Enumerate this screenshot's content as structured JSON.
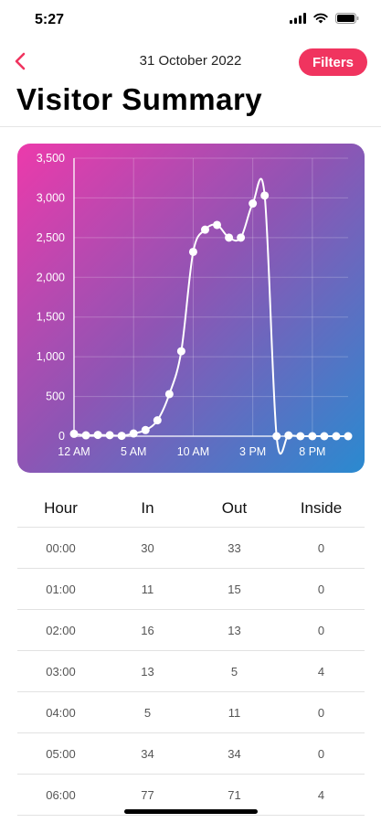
{
  "status": {
    "time": "5:27"
  },
  "nav": {
    "date": "31 October 2022",
    "filters_label": "Filters"
  },
  "title": "Visitor Summary",
  "colors": {
    "accent": "#f0345f"
  },
  "icons": {
    "back": "chevron-left-icon",
    "signal": "signal-icon",
    "wifi": "wifi-icon",
    "battery": "battery-icon"
  },
  "chart_data": {
    "type": "line",
    "x_tick_labels": [
      "12 AM",
      "5 AM",
      "10 AM",
      "3 PM",
      "8 PM"
    ],
    "x_tick_hours": [
      0,
      5,
      10,
      15,
      20
    ],
    "y_tick_labels": [
      "0",
      "500",
      "1,000",
      "1,500",
      "2,000",
      "2,500",
      "3,000",
      "3,500"
    ],
    "ylim": [
      0,
      3500
    ],
    "xlim": [
      0,
      23
    ],
    "grid": true,
    "series": [
      {
        "x": [
          0,
          1,
          2,
          3,
          4,
          5,
          6,
          7,
          8,
          9,
          10,
          11,
          12,
          13,
          14,
          15,
          16,
          17,
          18,
          19,
          20,
          21,
          22,
          23
        ],
        "values": [
          30,
          11,
          16,
          13,
          5,
          34,
          77,
          200,
          530,
          1070,
          2320,
          2600,
          2660,
          2500,
          2500,
          2930,
          3030,
          0,
          10,
          0,
          0,
          0,
          0,
          0
        ]
      }
    ]
  },
  "table": {
    "headers": [
      "Hour",
      "In",
      "Out",
      "Inside"
    ],
    "rows": [
      [
        "00:00",
        "30",
        "33",
        "0"
      ],
      [
        "01:00",
        "11",
        "15",
        "0"
      ],
      [
        "02:00",
        "16",
        "13",
        "0"
      ],
      [
        "03:00",
        "13",
        "5",
        "4"
      ],
      [
        "04:00",
        "5",
        "11",
        "0"
      ],
      [
        "05:00",
        "34",
        "34",
        "0"
      ],
      [
        "06:00",
        "77",
        "71",
        "4"
      ]
    ]
  }
}
